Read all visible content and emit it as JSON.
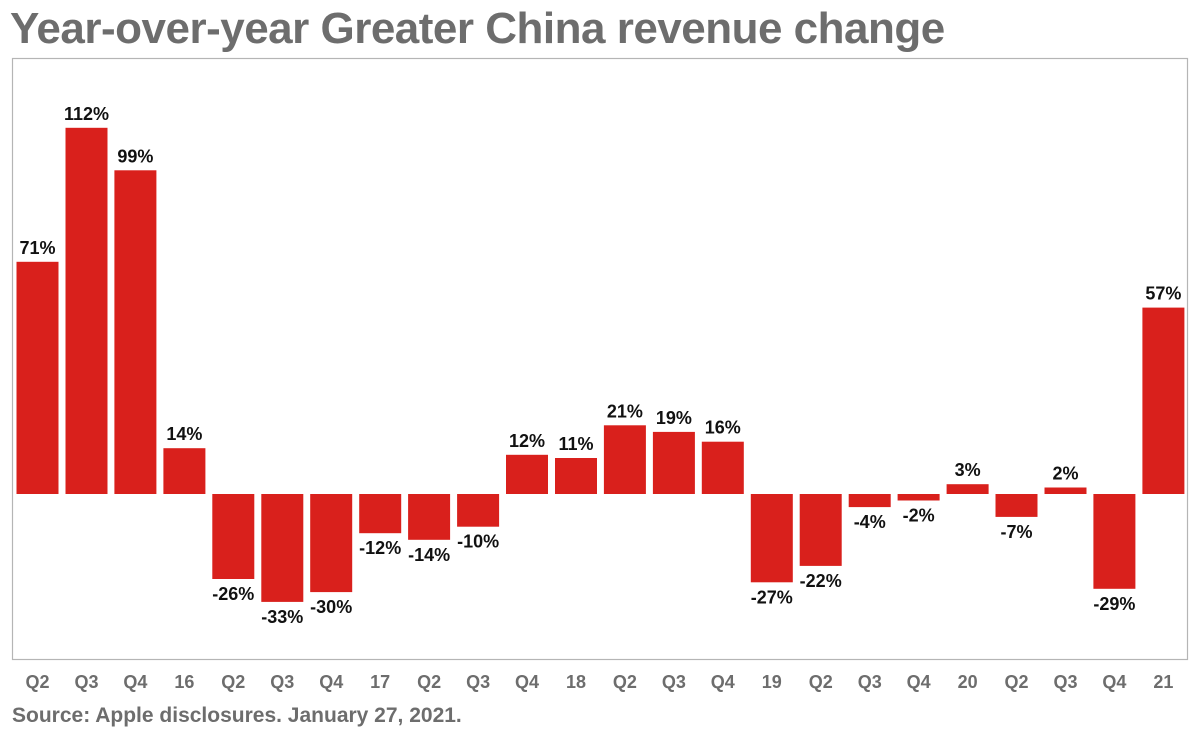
{
  "title": "Year-over-year Greater China revenue change",
  "source": "Source: Apple disclosures. January 27, 2021.",
  "colors": {
    "bar": "#d9201c",
    "frame": "#b5b5b5",
    "text": "#111111",
    "muted": "#6d6d6d"
  },
  "chart_data": {
    "type": "bar",
    "title": "Year-over-year Greater China revenue change",
    "categories": [
      "Q2",
      "Q3",
      "Q4",
      "16",
      "Q2",
      "Q3",
      "Q4",
      "17",
      "Q2",
      "Q3",
      "Q4",
      "18",
      "Q2",
      "Q3",
      "Q4",
      "19",
      "Q2",
      "Q3",
      "Q4",
      "20",
      "Q2",
      "Q3",
      "Q4",
      "21"
    ],
    "values": [
      71,
      112,
      99,
      14,
      -26,
      -33,
      -30,
      -12,
      -14,
      -10,
      12,
      11,
      21,
      19,
      16,
      -27,
      -22,
      -4,
      -2,
      3,
      -7,
      2,
      -29,
      57
    ],
    "data_labels": [
      "71%",
      "112%",
      "99%",
      "14%",
      "-26%",
      "-33%",
      "-30%",
      "-12%",
      "-14%",
      "-10%",
      "12%",
      "11%",
      "21%",
      "19%",
      "16%",
      "-27%",
      "-22%",
      "-4%",
      "-2%",
      "3%",
      "-7%",
      "2%",
      "-29%",
      "57%"
    ],
    "value_unit": "%",
    "xlabel": "",
    "ylabel": "",
    "ylim": [
      -46,
      133
    ],
    "grid": false,
    "legend": "none"
  }
}
